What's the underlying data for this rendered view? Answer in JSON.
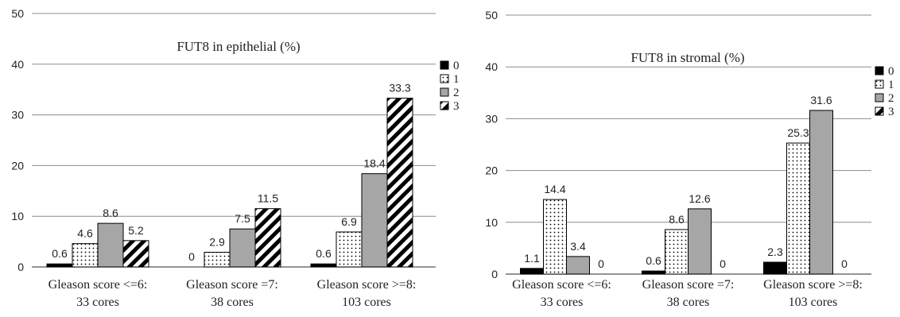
{
  "chart_data": [
    {
      "type": "bar",
      "title": "FUT8 in epithelial (%)",
      "categories": [
        [
          "Gleason score <=6:",
          "33 cores"
        ],
        [
          "Gleason score =7:",
          "38 cores"
        ],
        [
          "Gleason score >=8:",
          "103 cores"
        ]
      ],
      "series": [
        {
          "name": "0",
          "values": [
            0.6,
            0,
            0.6
          ]
        },
        {
          "name": "1",
          "values": [
            4.6,
            2.9,
            6.9
          ]
        },
        {
          "name": "2",
          "values": [
            8.6,
            7.5,
            18.4
          ]
        },
        {
          "name": "3",
          "values": [
            5.2,
            11.5,
            33.3
          ]
        }
      ],
      "ylim": [
        0,
        50
      ],
      "yticks": [
        0,
        10,
        20,
        30,
        40,
        50
      ],
      "grid": true,
      "legend": "right"
    },
    {
      "type": "bar",
      "title": "FUT8 in stromal (%)",
      "categories": [
        [
          "Gleason score <=6:",
          "33 cores"
        ],
        [
          "Gleason score =7:",
          "38 cores"
        ],
        [
          "Gleason score >=8:",
          "103 cores"
        ]
      ],
      "series": [
        {
          "name": "0",
          "values": [
            1.1,
            0.6,
            2.3
          ]
        },
        {
          "name": "1",
          "values": [
            14.4,
            8.6,
            25.3
          ]
        },
        {
          "name": "2",
          "values": [
            3.4,
            12.6,
            31.6
          ]
        },
        {
          "name": "3",
          "values": [
            0,
            0,
            0
          ]
        }
      ],
      "ylim": [
        0,
        50
      ],
      "yticks": [
        0,
        10,
        20,
        30,
        40,
        50
      ],
      "grid": true,
      "legend": "right"
    }
  ]
}
